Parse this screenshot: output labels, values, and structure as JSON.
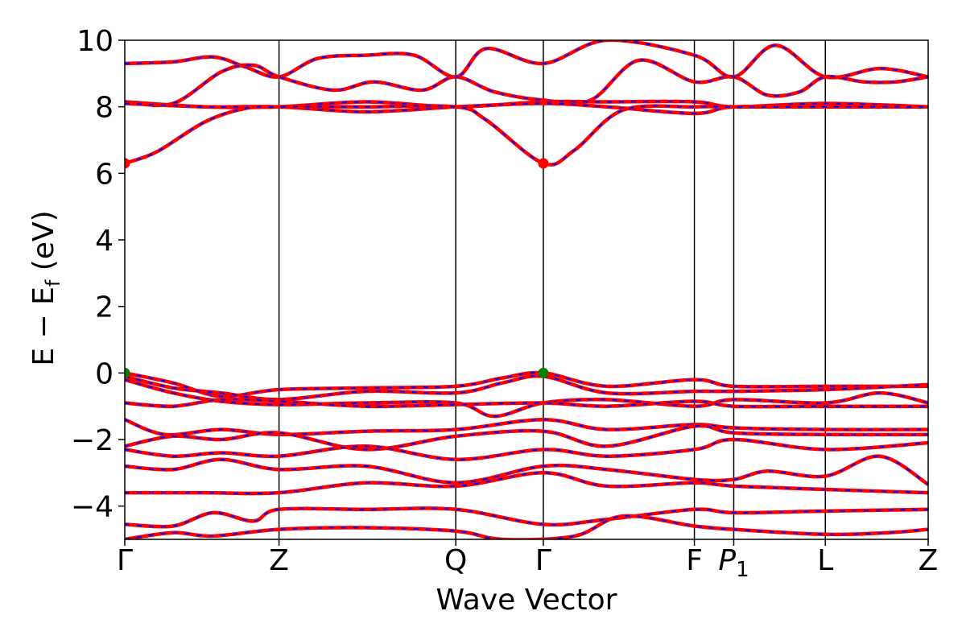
{
  "chart_data": {
    "type": "line",
    "xlabel": "Wave Vector",
    "ylabel_parts": {
      "main": "E − E",
      "sub": "f",
      "unit": " (eV)"
    },
    "ylim": [
      -5,
      10
    ],
    "y_ticks": [
      -4,
      -2,
      0,
      2,
      4,
      6,
      8,
      10
    ],
    "y_tick_labels": [
      "−4",
      "−2",
      "0",
      "2",
      "4",
      "6",
      "8",
      "10"
    ],
    "high_symmetry_points": [
      {
        "label": "Γ",
        "x": 0.0
      },
      {
        "label": "Z",
        "x": 0.192
      },
      {
        "label": "Q",
        "x": 0.412
      },
      {
        "label": "Γ",
        "x": 0.521
      },
      {
        "label": "F",
        "x": 0.709
      },
      {
        "label": "P",
        "sub": "1",
        "italic": true,
        "x": 0.758
      },
      {
        "label": "L",
        "x": 0.872
      },
      {
        "label": "Z",
        "x": 1.0
      }
    ],
    "series_style": [
      {
        "color": "#ff0000",
        "style": "solid"
      },
      {
        "color": "#0000ff",
        "style": "dashed"
      }
    ],
    "markers": [
      {
        "x": 0.0,
        "y": 6.3,
        "color": "#ff0000",
        "meaning": "CBM"
      },
      {
        "x": 0.521,
        "y": 6.3,
        "color": "#ff0000",
        "meaning": "CBM"
      },
      {
        "x": 0.0,
        "y": 0.0,
        "color": "#008000",
        "meaning": "VBM"
      },
      {
        "x": 0.521,
        "y": 0.0,
        "color": "#008000",
        "meaning": "VBM"
      }
    ],
    "bands": [
      [
        [
          0,
          9.3
        ],
        [
          0.06,
          9.35
        ],
        [
          0.11,
          9.5
        ],
        [
          0.15,
          9.2
        ],
        [
          0.192,
          8.9
        ],
        [
          0.24,
          9.45
        ],
        [
          0.3,
          9.55
        ],
        [
          0.36,
          9.55
        ],
        [
          0.412,
          8.9
        ],
        [
          0.45,
          9.75
        ],
        [
          0.521,
          9.3
        ],
        [
          0.6,
          10.0
        ],
        [
          0.709,
          9.55
        ],
        [
          0.758,
          8.9
        ],
        [
          0.81,
          9.85
        ],
        [
          0.872,
          8.9
        ],
        [
          0.94,
          9.15
        ],
        [
          1.0,
          8.9
        ]
      ],
      [
        [
          0,
          8.15
        ],
        [
          0.06,
          8.1
        ],
        [
          0.12,
          9.05
        ],
        [
          0.16,
          9.25
        ],
        [
          0.192,
          8.9
        ],
        [
          0.26,
          8.5
        ],
        [
          0.31,
          8.75
        ],
        [
          0.37,
          8.5
        ],
        [
          0.412,
          8.9
        ],
        [
          0.46,
          8.45
        ],
        [
          0.521,
          8.2
        ],
        [
          0.58,
          8.2
        ],
        [
          0.64,
          9.4
        ],
        [
          0.709,
          8.75
        ],
        [
          0.758,
          8.9
        ],
        [
          0.8,
          8.35
        ],
        [
          0.84,
          8.45
        ],
        [
          0.872,
          8.9
        ],
        [
          0.92,
          8.75
        ],
        [
          0.96,
          8.75
        ],
        [
          1.0,
          8.9
        ]
      ],
      [
        [
          0,
          8.15
        ],
        [
          0.1,
          8.0
        ],
        [
          0.192,
          8.0
        ],
        [
          0.3,
          8.15
        ],
        [
          0.412,
          8.0
        ],
        [
          0.521,
          8.15
        ],
        [
          0.6,
          8.15
        ],
        [
          0.709,
          8.15
        ],
        [
          0.758,
          8.0
        ],
        [
          0.872,
          8.1
        ],
        [
          1.0,
          8.0
        ]
      ],
      [
        [
          0,
          8.1
        ],
        [
          0.1,
          8.0
        ],
        [
          0.192,
          8.0
        ],
        [
          0.3,
          7.85
        ],
        [
          0.412,
          8.0
        ],
        [
          0.521,
          8.1
        ],
        [
          0.6,
          8.0
        ],
        [
          0.709,
          7.8
        ],
        [
          0.758,
          8.0
        ],
        [
          0.872,
          8.0
        ],
        [
          1.0,
          8.0
        ]
      ],
      [
        [
          0,
          6.3
        ],
        [
          0.04,
          6.65
        ],
        [
          0.1,
          7.55
        ],
        [
          0.15,
          7.95
        ],
        [
          0.192,
          8.0
        ],
        [
          0.3,
          8.0
        ],
        [
          0.412,
          8.0
        ],
        [
          0.45,
          7.6
        ],
        [
          0.521,
          6.3
        ],
        [
          0.56,
          6.7
        ],
        [
          0.62,
          7.9
        ],
        [
          0.709,
          8.0
        ],
        [
          0.758,
          8.0
        ],
        [
          0.872,
          8.0
        ],
        [
          1.0,
          8.0
        ]
      ],
      [
        [
          0,
          0.0
        ],
        [
          0.06,
          -0.3
        ],
        [
          0.12,
          -0.7
        ],
        [
          0.192,
          -0.5
        ],
        [
          0.3,
          -0.45
        ],
        [
          0.412,
          -0.4
        ],
        [
          0.47,
          -0.15
        ],
        [
          0.521,
          0.0
        ],
        [
          0.6,
          -0.4
        ],
        [
          0.709,
          -0.2
        ],
        [
          0.758,
          -0.4
        ],
        [
          0.872,
          -0.4
        ],
        [
          1.0,
          -0.4
        ]
      ],
      [
        [
          0,
          -0.1
        ],
        [
          0.06,
          -0.45
        ],
        [
          0.12,
          -0.6
        ],
        [
          0.192,
          -0.8
        ],
        [
          0.3,
          -0.55
        ],
        [
          0.412,
          -0.6
        ],
        [
          0.47,
          -0.3
        ],
        [
          0.521,
          -0.1
        ],
        [
          0.6,
          -0.6
        ],
        [
          0.709,
          -0.55
        ],
        [
          0.758,
          -0.55
        ],
        [
          0.872,
          -0.5
        ],
        [
          1.0,
          -0.35
        ]
      ],
      [
        [
          0,
          -0.2
        ],
        [
          0.06,
          -0.6
        ],
        [
          0.12,
          -0.85
        ],
        [
          0.192,
          -0.95
        ],
        [
          0.3,
          -0.9
        ],
        [
          0.412,
          -0.9
        ],
        [
          0.46,
          -1.3
        ],
        [
          0.521,
          -0.9
        ],
        [
          0.6,
          -0.8
        ],
        [
          0.709,
          -1.0
        ],
        [
          0.758,
          -0.8
        ],
        [
          0.872,
          -0.9
        ],
        [
          0.94,
          -0.6
        ],
        [
          1.0,
          -0.9
        ]
      ],
      [
        [
          0,
          -0.9
        ],
        [
          0.06,
          -1.0
        ],
        [
          0.12,
          -0.8
        ],
        [
          0.192,
          -0.85
        ],
        [
          0.3,
          -1.0
        ],
        [
          0.412,
          -0.95
        ],
        [
          0.521,
          -0.9
        ],
        [
          0.6,
          -1.0
        ],
        [
          0.709,
          -0.85
        ],
        [
          0.758,
          -1.0
        ],
        [
          0.872,
          -1.0
        ],
        [
          1.0,
          -1.0
        ]
      ],
      [
        [
          0,
          -1.4
        ],
        [
          0.05,
          -1.85
        ],
        [
          0.12,
          -1.7
        ],
        [
          0.192,
          -1.85
        ],
        [
          0.3,
          -1.75
        ],
        [
          0.412,
          -1.7
        ],
        [
          0.521,
          -1.4
        ],
        [
          0.6,
          -1.7
        ],
        [
          0.709,
          -1.55
        ],
        [
          0.758,
          -1.65
        ],
        [
          0.872,
          -1.7
        ],
        [
          1.0,
          -1.7
        ]
      ],
      [
        [
          0,
          -2.2
        ],
        [
          0.06,
          -1.9
        ],
        [
          0.12,
          -2.0
        ],
        [
          0.192,
          -1.8
        ],
        [
          0.3,
          -2.3
        ],
        [
          0.412,
          -1.9
        ],
        [
          0.521,
          -1.75
        ],
        [
          0.6,
          -2.2
        ],
        [
          0.709,
          -1.6
        ],
        [
          0.758,
          -1.8
        ],
        [
          0.872,
          -1.85
        ],
        [
          1.0,
          -1.85
        ]
      ],
      [
        [
          0,
          -2.3
        ],
        [
          0.06,
          -2.5
        ],
        [
          0.12,
          -2.4
        ],
        [
          0.192,
          -2.5
        ],
        [
          0.3,
          -2.2
        ],
        [
          0.412,
          -2.6
        ],
        [
          0.521,
          -2.3
        ],
        [
          0.6,
          -2.5
        ],
        [
          0.709,
          -2.3
        ],
        [
          0.758,
          -2.0
        ],
        [
          0.872,
          -2.3
        ],
        [
          1.0,
          -2.1
        ]
      ],
      [
        [
          0,
          -2.8
        ],
        [
          0.06,
          -2.9
        ],
        [
          0.12,
          -2.6
        ],
        [
          0.192,
          -2.9
        ],
        [
          0.3,
          -2.8
        ],
        [
          0.412,
          -3.3
        ],
        [
          0.521,
          -2.8
        ],
        [
          0.6,
          -2.9
        ],
        [
          0.709,
          -3.2
        ],
        [
          0.758,
          -3.2
        ],
        [
          0.8,
          -2.95
        ],
        [
          0.872,
          -3.1
        ],
        [
          0.94,
          -2.5
        ],
        [
          1.0,
          -3.35
        ]
      ],
      [
        [
          0,
          -3.6
        ],
        [
          0.1,
          -3.6
        ],
        [
          0.192,
          -3.6
        ],
        [
          0.3,
          -3.3
        ],
        [
          0.412,
          -3.4
        ],
        [
          0.521,
          -3.0
        ],
        [
          0.6,
          -3.4
        ],
        [
          0.709,
          -3.3
        ],
        [
          0.758,
          -3.4
        ],
        [
          0.872,
          -3.5
        ],
        [
          1.0,
          -3.6
        ]
      ],
      [
        [
          0,
          -4.55
        ],
        [
          0.06,
          -4.6
        ],
        [
          0.11,
          -4.2
        ],
        [
          0.16,
          -4.45
        ],
        [
          0.192,
          -4.1
        ],
        [
          0.3,
          -4.1
        ],
        [
          0.412,
          -4.1
        ],
        [
          0.521,
          -4.55
        ],
        [
          0.6,
          -4.4
        ],
        [
          0.709,
          -4.1
        ],
        [
          0.758,
          -4.2
        ],
        [
          0.872,
          -4.15
        ],
        [
          1.0,
          -4.1
        ]
      ],
      [
        [
          0,
          -5.0
        ],
        [
          0.06,
          -4.8
        ],
        [
          0.11,
          -4.9
        ],
        [
          0.192,
          -4.7
        ],
        [
          0.3,
          -4.65
        ],
        [
          0.412,
          -4.75
        ],
        [
          0.47,
          -5.0
        ],
        [
          0.56,
          -4.9
        ],
        [
          0.62,
          -4.3
        ],
        [
          0.709,
          -4.6
        ],
        [
          0.758,
          -4.7
        ],
        [
          0.872,
          -4.85
        ],
        [
          0.95,
          -4.8
        ],
        [
          1.0,
          -4.7
        ]
      ]
    ]
  }
}
